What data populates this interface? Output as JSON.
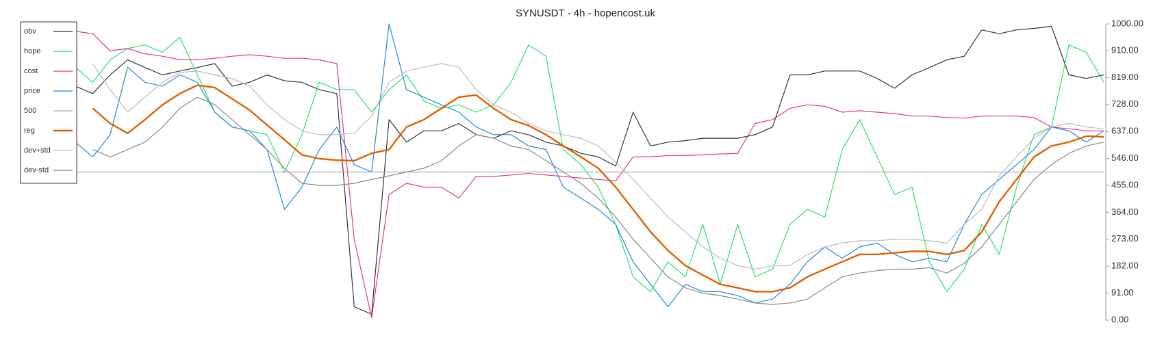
{
  "chart_data": {
    "type": "line",
    "title": "SYNUSDT - 4h - hopencost.uk",
    "ylim": [
      0,
      1000
    ],
    "yticks": [
      {
        "value": 0,
        "label": "0.00"
      },
      {
        "value": 91,
        "label": "91.00"
      },
      {
        "value": 182,
        "label": "182.00"
      },
      {
        "value": 273,
        "label": "273.00"
      },
      {
        "value": 364,
        "label": "364.00"
      },
      {
        "value": 455,
        "label": "455.00"
      },
      {
        "value": 546,
        "label": "546.00"
      },
      {
        "value": 637,
        "label": "637.00"
      },
      {
        "value": 728,
        "label": "728.00"
      },
      {
        "value": 819,
        "label": "819.00"
      },
      {
        "value": 910,
        "label": "910.00"
      },
      {
        "value": 1000,
        "label": "1000.00"
      }
    ],
    "legend": "upper left",
    "series": [
      {
        "name": "obv",
        "color": "#333333",
        "values": [
          790,
          765,
          828,
          879,
          853,
          828,
          841,
          853,
          866,
          790,
          803,
          828,
          808,
          803,
          778,
          765,
          45,
          20,
          677,
          601,
          639,
          639,
          664,
          626,
          614,
          639,
          626,
          601,
          588,
          563,
          551,
          520,
          702,
          588,
          601,
          606,
          614,
          614,
          614,
          626,
          652,
          828,
          828,
          841,
          841,
          841,
          816,
          783,
          828,
          853,
          879,
          891,
          980,
          967,
          980,
          985,
          992,
          828,
          816,
          828
        ]
      },
      {
        "name": "hope",
        "color": "#2ee06a",
        "values": [
          854,
          803,
          879,
          917,
          929,
          904,
          955,
          828,
          702,
          652,
          639,
          626,
          500,
          626,
          803,
          778,
          778,
          702,
          778,
          828,
          740,
          715,
          727,
          702,
          727,
          803,
          929,
          891,
          576,
          525,
          449,
          323,
          146,
          96,
          197,
          146,
          323,
          121,
          323,
          146,
          172,
          323,
          374,
          348,
          576,
          677,
          551,
          424,
          449,
          197,
          96,
          172,
          323,
          222,
          449,
          626,
          652,
          929,
          904,
          803
        ]
      },
      {
        "name": "cost",
        "color": "#e6338a",
        "values": [
          975,
          967,
          909,
          917,
          899,
          891,
          879,
          879,
          884,
          891,
          896,
          891,
          884,
          884,
          879,
          866,
          273,
          8,
          424,
          462,
          449,
          449,
          412,
          485,
          485,
          490,
          495,
          490,
          485,
          480,
          475,
          470,
          551,
          551,
          556,
          556,
          558,
          561,
          563,
          664,
          677,
          715,
          727,
          722,
          702,
          707,
          702,
          697,
          689,
          689,
          684,
          682,
          689,
          689,
          689,
          684,
          652,
          646,
          639,
          639
        ]
      },
      {
        "name": "price",
        "color": "#1e88e5",
        "values": [
          601,
          551,
          626,
          854,
          803,
          790,
          828,
          803,
          702,
          652,
          639,
          576,
          374,
          449,
          576,
          652,
          525,
          500,
          1000,
          778,
          753,
          727,
          702,
          652,
          626,
          626,
          588,
          576,
          449,
          412,
          374,
          323,
          197,
          121,
          45,
          121,
          96,
          96,
          83,
          58,
          71,
          121,
          197,
          247,
          209,
          247,
          260,
          222,
          197,
          209,
          197,
          323,
          424,
          475,
          525,
          576,
          652,
          639,
          601,
          639
        ]
      },
      {
        "name": "500",
        "color": "#aaaaaa",
        "values": [
          500,
          500,
          500,
          500,
          500,
          500,
          500,
          500,
          500,
          500,
          500,
          500,
          500,
          500,
          500,
          500,
          500,
          500,
          500,
          500,
          500,
          500,
          500,
          500,
          500,
          500,
          500,
          500,
          500,
          500,
          500,
          500,
          500,
          500,
          500,
          500,
          500,
          500,
          500,
          500,
          500,
          500,
          500,
          500,
          500,
          500,
          500,
          500,
          500,
          500,
          500,
          500,
          500,
          500,
          500,
          500,
          500,
          500,
          500,
          500
        ]
      },
      {
        "name": "dev+std",
        "color": "#bbbbbb",
        "values": [
          null,
          866,
          778,
          702,
          753,
          803,
          836,
          841,
          828,
          816,
          790,
          727,
          677,
          639,
          626,
          626,
          631,
          689,
          803,
          841,
          854,
          866,
          854,
          778,
          727,
          702,
          664,
          639,
          626,
          614,
          588,
          533,
          475,
          412,
          348,
          298,
          247,
          209,
          184,
          172,
          184,
          184,
          222,
          247,
          260,
          268,
          268,
          273,
          273,
          268,
          260,
          323,
          374,
          487,
          551,
          614,
          652,
          664,
          652,
          646
        ]
      },
      {
        "name": "dev-std",
        "color": "#888888",
        "values": [
          null,
          576,
          551,
          576,
          601,
          652,
          715,
          753,
          727,
          677,
          626,
          576,
          513,
          462,
          455,
          455,
          462,
          475,
          487,
          500,
          513,
          538,
          588,
          626,
          614,
          588,
          576,
          538,
          500,
          462,
          412,
          348,
          273,
          209,
          146,
          109,
          91,
          83,
          71,
          58,
          53,
          58,
          71,
          109,
          146,
          159,
          167,
          172,
          172,
          177,
          159,
          192,
          247,
          323,
          399,
          475,
          525,
          563,
          588,
          601
        ]
      },
      {
        "name": "reg",
        "color": "#e06000",
        "values": [
          null,
          715,
          664,
          631,
          677,
          727,
          765,
          793,
          785,
          747,
          709,
          659,
          609,
          558,
          545,
          540,
          538,
          563,
          576,
          652,
          677,
          715,
          753,
          760,
          715,
          677,
          657,
          626,
          588,
          551,
          513,
          449,
          374,
          298,
          235,
          184,
          152,
          121,
          109,
          96,
          96,
          109,
          146,
          172,
          197,
          222,
          222,
          227,
          232,
          232,
          222,
          235,
          298,
          399,
          475,
          551,
          588,
          601,
          621,
          619
        ]
      }
    ]
  }
}
